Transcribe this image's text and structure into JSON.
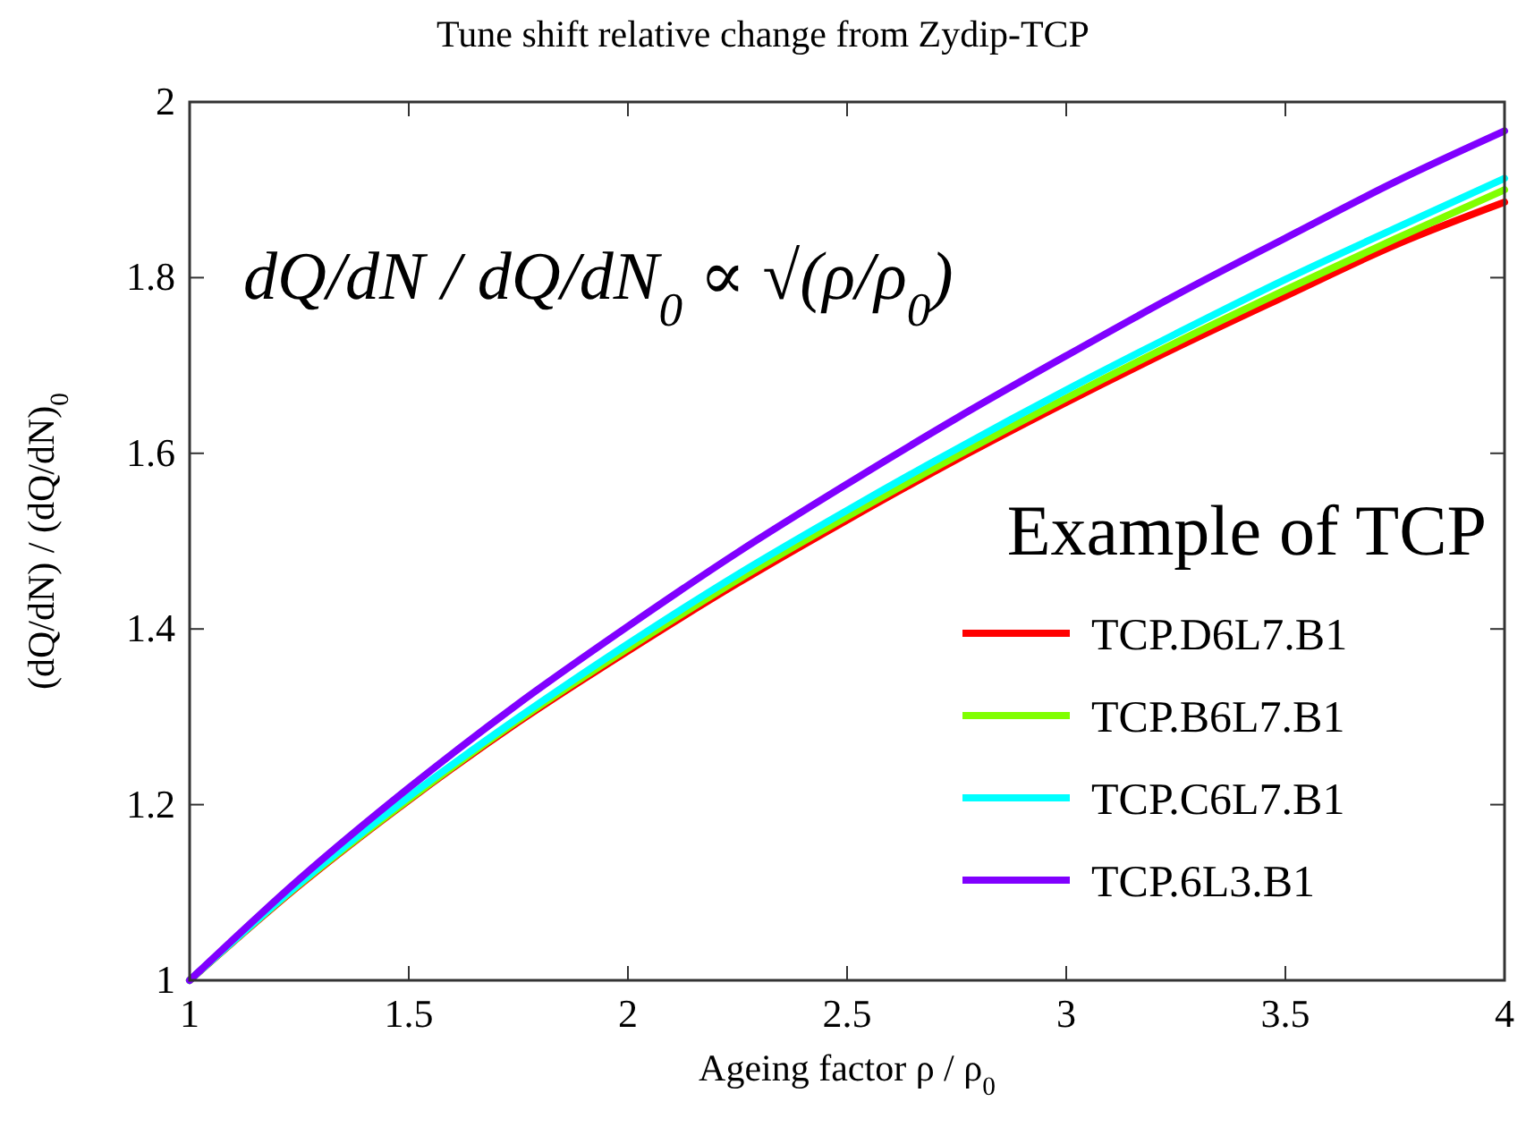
{
  "chart_data": {
    "type": "line",
    "title": "Tune shift relative change from Zydip-TCP",
    "xlabel": "Ageing factor ρ / ρ$_{0}$",
    "ylabel": "(dQ/dN) / (dQ/dN)$_{0}$",
    "annotations": [
      "dQ/dN / dQ/dN$_{0}$ ∝ √(ρ/ρ$_{0}$)",
      "Example of TCP"
    ],
    "x": [
      1,
      1.25,
      1.5,
      1.75,
      2,
      2.25,
      2.5,
      2.75,
      3,
      3.25,
      3.5,
      3.75,
      4
    ],
    "series": [
      {
        "name": "TCP.D6L7.B1",
        "color": "#ff0000",
        "values": [
          1,
          1.108,
          1.205,
          1.294,
          1.375,
          1.452,
          1.524,
          1.593,
          1.658,
          1.72,
          1.779,
          1.837,
          1.886
        ]
      },
      {
        "name": "TCP.B6L7.B1",
        "color": "#80ff00",
        "values": [
          1,
          1.109,
          1.206,
          1.296,
          1.378,
          1.456,
          1.528,
          1.597,
          1.663,
          1.726,
          1.786,
          1.844,
          1.9
        ]
      },
      {
        "name": "TCP.C6L7.B1",
        "color": "#00ffff",
        "values": [
          1,
          1.11,
          1.209,
          1.299,
          1.383,
          1.462,
          1.535,
          1.605,
          1.672,
          1.736,
          1.798,
          1.856,
          1.913
        ]
      },
      {
        "name": "TCP.6L3.B1",
        "color": "#8000ff",
        "values": [
          1,
          1.115,
          1.219,
          1.315,
          1.403,
          1.487,
          1.565,
          1.64,
          1.711,
          1.78,
          1.845,
          1.909,
          1.967
        ]
      }
    ],
    "xlim": [
      1,
      4
    ],
    "ylim": [
      1,
      2
    ],
    "xticks": [
      1,
      1.5,
      2,
      2.5,
      3,
      3.5,
      4
    ],
    "yticks": [
      1,
      1.2,
      1.4,
      1.6,
      1.8,
      2
    ],
    "grid": false,
    "legend": "right",
    "line_style": "solid",
    "marker": "none"
  }
}
